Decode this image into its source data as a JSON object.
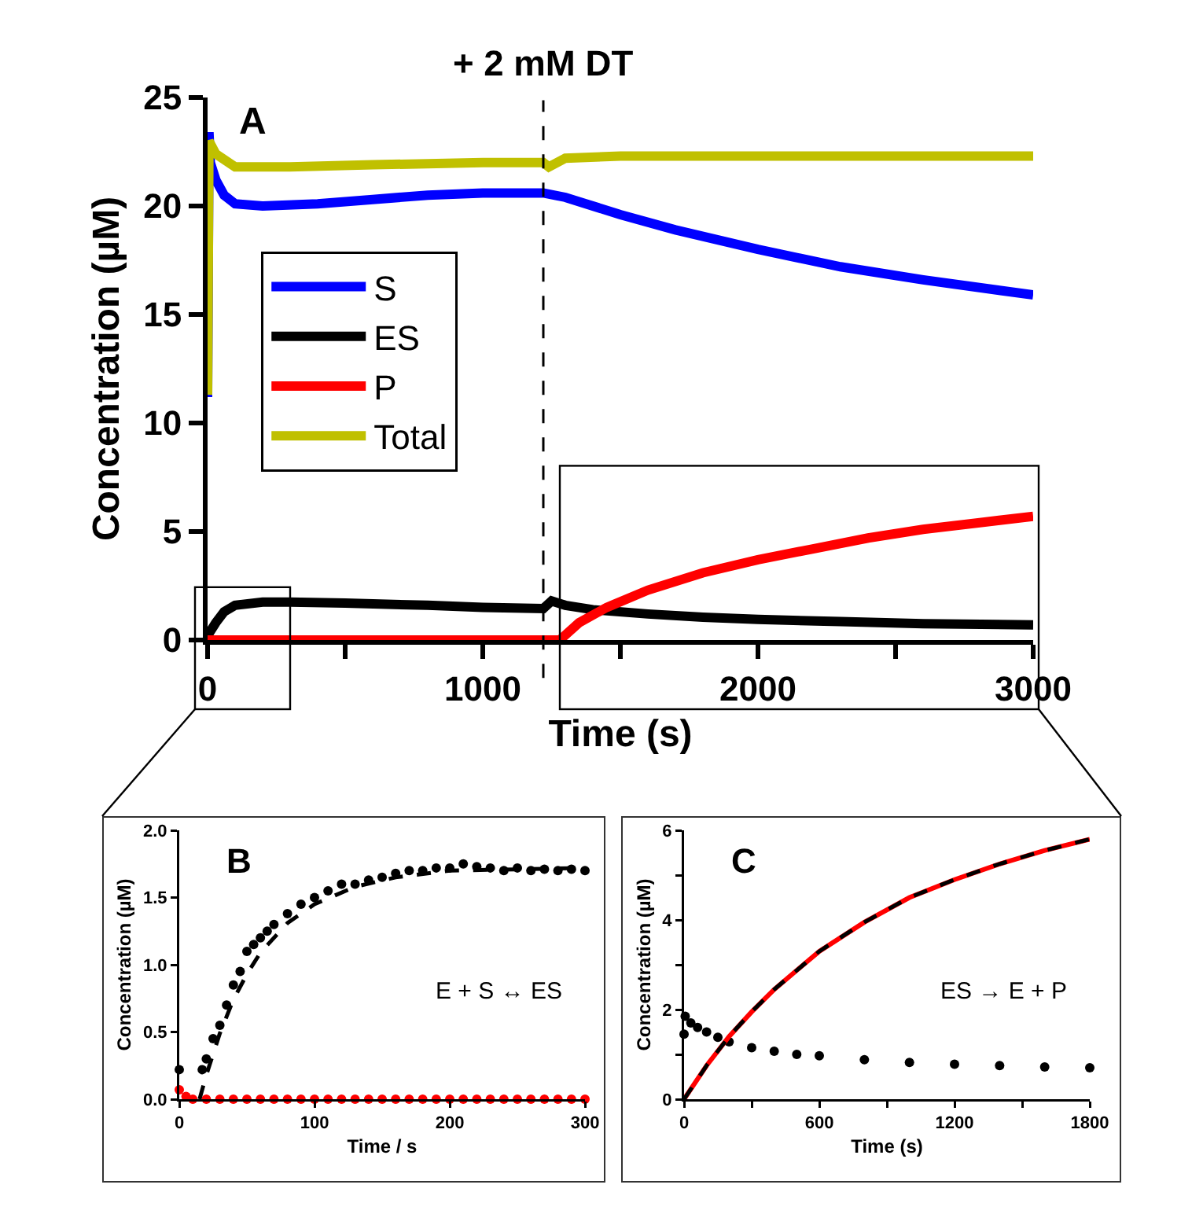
{
  "chart_data": [
    {
      "type": "line",
      "xlabel": "Time (s)",
      "ylabel": "Concentration (µM)",
      "xlim": [
        0,
        3000
      ],
      "ylim": [
        0,
        25
      ],
      "xticks": [
        0,
        {
          "value": 500,
          "label": null
        },
        1000,
        {
          "value": 1500,
          "label": null
        },
        2000,
        {
          "value": 2500,
          "label": null
        },
        3000
      ],
      "yticks": [
        0,
        5,
        10,
        15,
        20,
        25
      ],
      "legend": "left",
      "line_style": "solid",
      "ref_lines": [
        {
          "axis": "x",
          "value": 1220,
          "label": "+ 2 mM DT",
          "color": "#000000",
          "line_style": "dashed"
        }
      ],
      "annotations": [
        "A"
      ],
      "series": [
        {
          "name": "S",
          "color": "#0000ff",
          "x": [
            0,
            5,
            10,
            30,
            60,
            100,
            200,
            400,
            600,
            800,
            1000,
            1220,
            1300,
            1500,
            1700,
            2000,
            2300,
            2600,
            3000
          ],
          "values": [
            11.2,
            23.4,
            22.0,
            21.2,
            20.5,
            20.1,
            20.0,
            20.1,
            20.3,
            20.5,
            20.6,
            20.6,
            20.4,
            19.6,
            18.9,
            18.0,
            17.2,
            16.6,
            15.9
          ]
        },
        {
          "name": "ES",
          "color": "#000000",
          "x": [
            0,
            30,
            60,
            100,
            200,
            300,
            500,
            800,
            1000,
            1220,
            1250,
            1300,
            1400,
            1600,
            1800,
            2000,
            2300,
            2600,
            3000
          ],
          "values": [
            0.2,
            0.8,
            1.3,
            1.6,
            1.75,
            1.75,
            1.7,
            1.6,
            1.5,
            1.45,
            1.8,
            1.6,
            1.4,
            1.2,
            1.05,
            0.95,
            0.85,
            0.75,
            0.7
          ]
        },
        {
          "name": "P",
          "color": "#ff0000",
          "x": [
            0,
            1280,
            1350,
            1450,
            1600,
            1800,
            2000,
            2200,
            2400,
            2600,
            2800,
            3000
          ],
          "values": [
            0,
            0,
            0.8,
            1.5,
            2.3,
            3.1,
            3.7,
            4.2,
            4.7,
            5.1,
            5.4,
            5.7
          ]
        },
        {
          "name": "Total",
          "color": "#c0c000",
          "x": [
            0,
            5,
            30,
            100,
            300,
            600,
            1000,
            1220,
            1240,
            1300,
            1500,
            2000,
            3000
          ],
          "values": [
            11.3,
            23.0,
            22.4,
            21.8,
            21.8,
            21.9,
            22.0,
            22.0,
            21.8,
            22.2,
            22.3,
            22.3,
            22.3
          ]
        }
      ]
    },
    {
      "type": "scatter",
      "xlabel": "Time / s",
      "ylabel": "Concentration (µM)",
      "xlim": [
        0,
        300
      ],
      "ylim": [
        0,
        2
      ],
      "xticks": [
        0,
        100,
        200,
        300
      ],
      "yticks": [
        {
          "value": 0,
          "label": "0.0"
        },
        {
          "value": 0.5,
          "label": "0.5"
        },
        {
          "value": 1,
          "label": "1.0"
        },
        {
          "value": 1.5,
          "label": "1.5"
        },
        {
          "value": 2,
          "label": "2.0"
        }
      ],
      "marker": "circle",
      "annotations": [
        "B",
        "E + S ↔ ES"
      ],
      "series": [
        {
          "color": "#000000",
          "x": [
            0,
            17,
            20,
            25,
            30,
            35,
            40,
            45,
            50,
            55,
            60,
            65,
            70,
            80,
            90,
            100,
            110,
            120,
            130,
            140,
            150,
            160,
            170,
            180,
            190,
            200,
            210,
            220,
            230,
            240,
            250,
            260,
            270,
            280,
            290,
            300
          ],
          "values": [
            0.22,
            0.22,
            0.3,
            0.45,
            0.55,
            0.7,
            0.85,
            0.95,
            1.1,
            1.15,
            1.2,
            1.25,
            1.3,
            1.38,
            1.45,
            1.5,
            1.55,
            1.6,
            1.6,
            1.63,
            1.65,
            1.68,
            1.7,
            1.7,
            1.72,
            1.72,
            1.75,
            1.73,
            1.72,
            1.7,
            1.72,
            1.7,
            1.71,
            1.7,
            1.71,
            1.7
          ]
        },
        {
          "type": "line",
          "marker": "none",
          "line_style": "dashed",
          "color": "#000000",
          "x": [
            15,
            20,
            30,
            40,
            50,
            60,
            80,
            100,
            130,
            160,
            200,
            250,
            300
          ],
          "values": [
            0,
            0.18,
            0.49,
            0.74,
            0.93,
            1.09,
            1.31,
            1.45,
            1.58,
            1.65,
            1.7,
            1.71,
            1.72
          ]
        },
        {
          "color": "#ff0000",
          "x": [
            0,
            5,
            10,
            20,
            30,
            40,
            50,
            60,
            70,
            80,
            90,
            100,
            110,
            120,
            130,
            140,
            150,
            160,
            170,
            180,
            190,
            200,
            210,
            220,
            230,
            240,
            250,
            260,
            270,
            280,
            290,
            300
          ],
          "values": [
            0.07,
            0.02,
            0,
            0,
            0,
            0,
            0,
            0,
            0,
            0,
            0,
            0,
            0,
            0,
            0,
            0,
            0,
            0,
            0,
            0,
            0,
            0,
            0,
            0,
            0,
            0,
            0,
            0,
            0,
            0,
            0,
            0
          ]
        }
      ]
    },
    {
      "type": "scatter",
      "xlabel": "Time (s)",
      "ylabel": "Concentration (µM)",
      "xlim": [
        0,
        1800
      ],
      "ylim": [
        0,
        6
      ],
      "xticks": [
        0,
        {
          "value": 300,
          "label": null
        },
        600,
        {
          "value": 900,
          "label": null
        },
        1200,
        {
          "value": 1500,
          "label": null
        },
        1800
      ],
      "yticks": [
        0,
        {
          "value": 1,
          "label": null
        },
        2,
        {
          "value": 3,
          "label": null
        },
        4,
        {
          "value": 5,
          "label": null
        },
        6
      ],
      "marker": "circle",
      "annotations": [
        "C",
        "ES → E + P"
      ],
      "series": [
        {
          "color": "#000000",
          "x": [
            0,
            5,
            30,
            60,
            100,
            150,
            200,
            300,
            400,
            500,
            600,
            800,
            1000,
            1200,
            1400,
            1600,
            1800
          ],
          "values": [
            1.45,
            1.85,
            1.7,
            1.6,
            1.5,
            1.38,
            1.28,
            1.15,
            1.07,
            1.0,
            0.97,
            0.88,
            0.82,
            0.78,
            0.75,
            0.72,
            0.7
          ]
        },
        {
          "type": "line",
          "marker": "none",
          "line_style": "solid",
          "color": "#ff0000",
          "x": [
            0,
            100,
            200,
            300,
            400,
            600,
            800,
            1000,
            1200,
            1400,
            1600,
            1800
          ],
          "values": [
            0,
            0.75,
            1.4,
            1.95,
            2.45,
            3.3,
            3.95,
            4.5,
            4.9,
            5.25,
            5.55,
            5.8
          ]
        },
        {
          "type": "line",
          "marker": "none",
          "line_style": "dashed",
          "color": "#000000",
          "x": [
            0,
            100,
            200,
            300,
            400,
            600,
            800,
            1000,
            1200,
            1400,
            1600,
            1800
          ],
          "values": [
            0,
            0.75,
            1.4,
            1.95,
            2.45,
            3.3,
            3.95,
            4.5,
            4.9,
            5.25,
            5.55,
            5.8
          ]
        }
      ]
    }
  ]
}
